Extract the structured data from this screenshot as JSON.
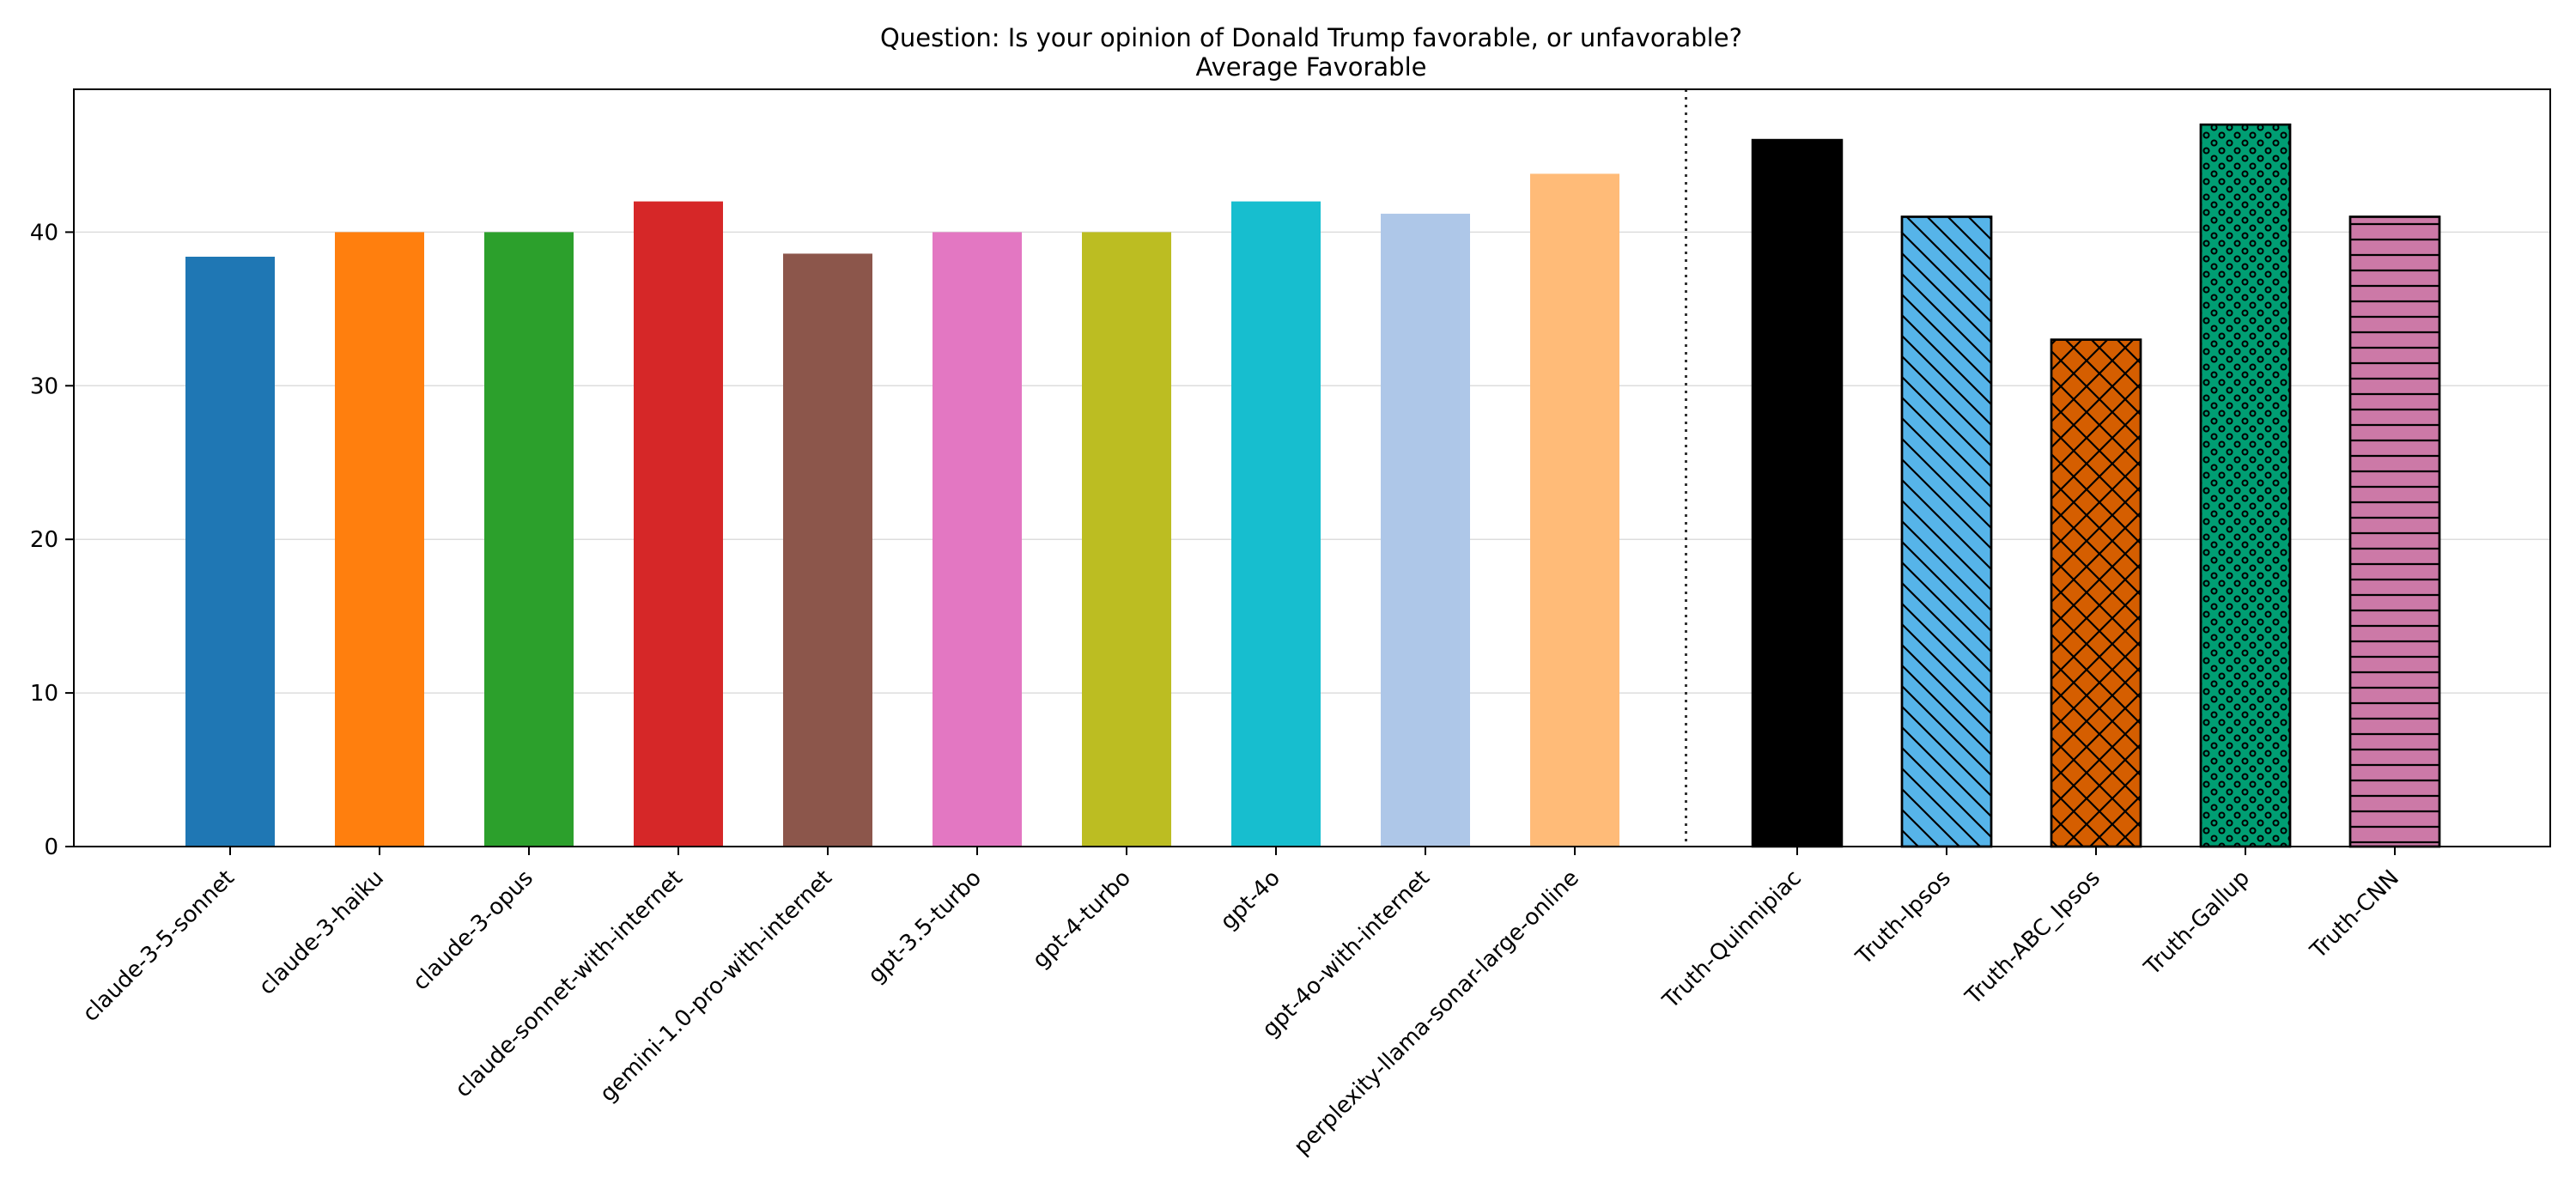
{
  "chart_data": {
    "type": "bar",
    "title": "Question: Is your opinion of Donald Trump favorable, or unfavorable?",
    "subtitle": "Average Favorable",
    "xlabel": "",
    "ylabel": "",
    "ylim": [
      0,
      49.3
    ],
    "yticks": [
      0,
      10,
      20,
      30,
      40
    ],
    "grid": "horizontal",
    "legend": "none",
    "separator": "dotted vertical line between model bars and truth bars",
    "bars": [
      {
        "category": "claude-3-5-sonnet",
        "value": 38.4,
        "color": "#1f77b4",
        "hatch": "none",
        "group": "model"
      },
      {
        "category": "claude-3-haiku",
        "value": 40.0,
        "color": "#ff7f0e",
        "hatch": "none",
        "group": "model"
      },
      {
        "category": "claude-3-opus",
        "value": 40.0,
        "color": "#2ca02c",
        "hatch": "none",
        "group": "model"
      },
      {
        "category": "claude-sonnet-with-internet",
        "value": 42.0,
        "color": "#d62728",
        "hatch": "none",
        "group": "model"
      },
      {
        "category": "gemini-1.0-pro-with-internet",
        "value": 38.6,
        "color": "#8c564b",
        "hatch": "none",
        "group": "model"
      },
      {
        "category": "gpt-3.5-turbo",
        "value": 40.0,
        "color": "#e377c2",
        "hatch": "none",
        "group": "model"
      },
      {
        "category": "gpt-4-turbo",
        "value": 40.0,
        "color": "#bcbd22",
        "hatch": "none",
        "group": "model"
      },
      {
        "category": "gpt-4o",
        "value": 42.0,
        "color": "#17becf",
        "hatch": "none",
        "group": "model"
      },
      {
        "category": "gpt-4o-with-internet",
        "value": 41.2,
        "color": "#aec7e8",
        "hatch": "none",
        "group": "model"
      },
      {
        "category": "perplexity-llama-sonar-large-online",
        "value": 43.8,
        "color": "#ffbb78",
        "hatch": "none",
        "group": "model"
      },
      {
        "category": "Truth-Quinnipiac",
        "value": 46.0,
        "color": "#000000",
        "hatch": "none",
        "group": "truth"
      },
      {
        "category": "Truth-Ipsos",
        "value": 41.0,
        "color": "#56b4e9",
        "hatch": "backslash",
        "group": "truth"
      },
      {
        "category": "Truth-ABC_Ipsos",
        "value": 33.0,
        "color": "#d55e00",
        "hatch": "crosshatch",
        "group": "truth"
      },
      {
        "category": "Truth-Gallup",
        "value": 47.0,
        "color": "#009e73",
        "hatch": "circles",
        "group": "truth"
      },
      {
        "category": "Truth-CNN",
        "value": 41.0,
        "color": "#cc79a7",
        "hatch": "horizontal",
        "group": "truth"
      }
    ]
  }
}
